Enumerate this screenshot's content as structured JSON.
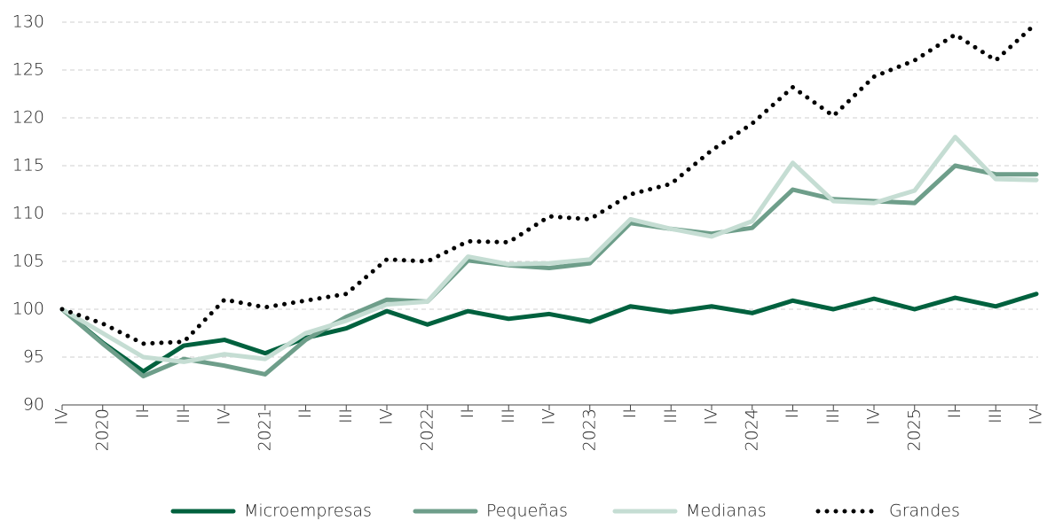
{
  "chart_data": {
    "type": "line",
    "categories": [
      "IV",
      "2020",
      "II",
      "III",
      "IV",
      "2021",
      "II",
      "III",
      "IV",
      "2022",
      "II",
      "III",
      "IV",
      "2023",
      "II",
      "III",
      "IV",
      "2024",
      "II",
      "III",
      "IV",
      "2025",
      "II",
      "III",
      "IV"
    ],
    "series": [
      {
        "name": "Microempresas",
        "color": "#00613e",
        "style": "solid",
        "values": [
          100,
          96.5,
          93.5,
          96.2,
          96.8,
          95.4,
          97.0,
          98.0,
          99.8,
          98.4,
          99.8,
          99.0,
          99.5,
          98.7,
          100.3,
          99.7,
          100.3,
          99.6,
          100.9,
          100.0,
          101.1,
          100.0,
          101.2,
          100.3,
          101.6
        ]
      },
      {
        "name": "Pequeñas",
        "color": "#6e9e8a",
        "style": "solid",
        "values": [
          100,
          96.4,
          93.0,
          94.8,
          94.1,
          93.2,
          96.8,
          99.2,
          101.0,
          100.8,
          105.1,
          104.6,
          104.3,
          104.8,
          109.0,
          108.4,
          107.9,
          108.5,
          112.5,
          111.5,
          111.3,
          111.1,
          115.0,
          114.1,
          114.1
        ]
      },
      {
        "name": "Medianas",
        "color": "#c5ddd3",
        "style": "solid",
        "values": [
          100,
          97.5,
          95.0,
          94.5,
          95.3,
          94.8,
          97.5,
          98.8,
          100.5,
          100.8,
          105.5,
          104.7,
          104.8,
          105.2,
          109.4,
          108.4,
          107.6,
          109.2,
          115.3,
          111.3,
          111.1,
          112.4,
          118.0,
          113.6,
          113.5
        ]
      },
      {
        "name": "Grandes",
        "color": "#000000",
        "style": "dotted",
        "values": [
          100,
          98.5,
          96.4,
          96.6,
          101.0,
          100.2,
          100.9,
          101.6,
          105.2,
          105.0,
          107.1,
          107.0,
          109.7,
          109.4,
          112.0,
          113.1,
          116.6,
          119.4,
          123.2,
          120.2,
          124.3,
          126.0,
          128.7,
          126.0,
          129.9
        ]
      }
    ],
    "ylim": [
      90,
      130
    ],
    "yticks": [
      90,
      95,
      100,
      105,
      110,
      115,
      120,
      125,
      130
    ],
    "grid": true,
    "legend": "bottom"
  }
}
